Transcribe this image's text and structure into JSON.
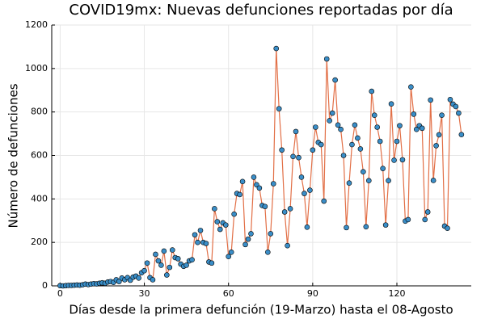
{
  "chart_data": {
    "type": "line",
    "title": "COVID19mx: Nuevas defunciones reportadas por día",
    "x_label": "Días desde la primera defunción (19-Marzo) hasta el 08-Agosto",
    "y_label": "Número de defunciones",
    "x": [
      0,
      1,
      2,
      3,
      4,
      5,
      6,
      7,
      8,
      9,
      10,
      11,
      12,
      13,
      14,
      15,
      16,
      17,
      18,
      19,
      20,
      21,
      22,
      23,
      24,
      25,
      26,
      27,
      28,
      29,
      30,
      31,
      32,
      33,
      34,
      35,
      36,
      37,
      38,
      39,
      40,
      41,
      42,
      43,
      44,
      45,
      46,
      47,
      48,
      49,
      50,
      51,
      52,
      53,
      54,
      55,
      56,
      57,
      58,
      59,
      60,
      61,
      62,
      63,
      64,
      65,
      66,
      67,
      68,
      69,
      70,
      71,
      72,
      73,
      74,
      75,
      76,
      77,
      78,
      79,
      80,
      81,
      82,
      83,
      84,
      85,
      86,
      87,
      88,
      89,
      90,
      91,
      92,
      93,
      94,
      95,
      96,
      97,
      98,
      99,
      100,
      101,
      102,
      103,
      104,
      105,
      106,
      107,
      108,
      109,
      110,
      111,
      112,
      113,
      114,
      115,
      116,
      117,
      118,
      119,
      120,
      121,
      122,
      123,
      124,
      125,
      126,
      127,
      128,
      129,
      130,
      131,
      132,
      133,
      134,
      135,
      136,
      137,
      138,
      139,
      140,
      141,
      142,
      143
    ],
    "series": [
      {
        "line_color": "#e26f46",
        "marker_color": "#3a8ec8",
        "values": [
          1,
          0,
          1,
          2,
          2,
          3,
          4,
          3,
          5,
          8,
          6,
          8,
          10,
          9,
          12,
          14,
          12,
          18,
          20,
          16,
          28,
          20,
          36,
          28,
          38,
          26,
          40,
          45,
          36,
          60,
          70,
          105,
          38,
          28,
          145,
          115,
          95,
          160,
          50,
          85,
          165,
          130,
          125,
          100,
          90,
          95,
          115,
          120,
          235,
          200,
          255,
          200,
          195,
          110,
          105,
          355,
          295,
          260,
          290,
          280,
          135,
          155,
          330,
          425,
          420,
          480,
          190,
          215,
          240,
          500,
          465,
          450,
          370,
          365,
          155,
          240,
          470,
          1092,
          815,
          625,
          340,
          185,
          355,
          595,
          710,
          590,
          500,
          425,
          270,
          440,
          625,
          730,
          660,
          650,
          390,
          1044,
          760,
          795,
          947,
          740,
          720,
          600,
          268,
          473,
          650,
          740,
          680,
          630,
          525,
          272,
          484,
          895,
          785,
          730,
          665,
          540,
          280,
          484,
          837,
          578,
          665,
          737,
          580,
          298,
          305,
          915,
          790,
          720,
          737,
          725,
          305,
          340,
          855,
          485,
          645,
          695,
          785,
          275,
          265,
          857,
          836,
          825,
          795,
          696
        ]
      }
    ],
    "xlim": [
      -3,
      146.5
    ],
    "xticks": [
      0,
      30,
      60,
      90,
      120
    ],
    "ylim": [
      0,
      1200
    ],
    "yticks": [
      0,
      200,
      400,
      600,
      800,
      1000,
      1200
    ],
    "grid": true
  }
}
